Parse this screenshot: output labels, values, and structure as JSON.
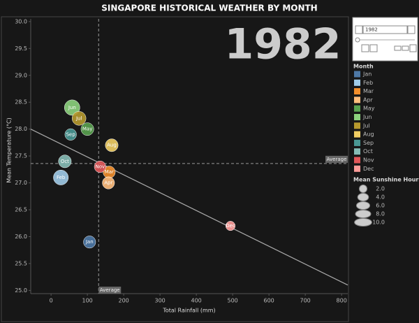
{
  "chart_data": {
    "type": "scatter",
    "title": "SINGAPORE HISTORICAL WEATHER BY MONTH",
    "year": "1982",
    "x_label": "Total Rainfall (mm)",
    "y_label": "Mean Temperature (°C)",
    "xlim": [
      -56,
      817
    ],
    "ylim": [
      24.94,
      30.05
    ],
    "xticks": [
      0,
      100,
      200,
      300,
      400,
      500,
      600,
      700,
      800
    ],
    "yticks": [
      {
        "value": 25,
        "label": "25.0"
      },
      {
        "value": 25.5,
        "label": "25.5"
      },
      {
        "value": 26,
        "label": "26.0"
      },
      {
        "value": 26.5,
        "label": "26.5"
      },
      {
        "value": 27,
        "label": "27.0"
      },
      {
        "value": 27.5,
        "label": "27.5"
      },
      {
        "value": 28,
        "label": "28.0"
      },
      {
        "value": 28.5,
        "label": "28.5"
      },
      {
        "value": 29,
        "label": "29.0"
      },
      {
        "value": 29.5,
        "label": "29.5"
      },
      {
        "value": 30,
        "label": "30.0"
      }
    ],
    "legend_title": "Month",
    "series": [
      {
        "name": "Jan",
        "color": "#4e79a7",
        "x": [
          106
        ],
        "values": [
          25.9
        ],
        "sizes": [
          5.0
        ]
      },
      {
        "name": "Feb",
        "color": "#a0cbe8",
        "x": [
          27
        ],
        "values": [
          27.1
        ],
        "sizes": [
          7.5
        ]
      },
      {
        "name": "Mar",
        "color": "#f28e2b",
        "x": [
          160
        ],
        "values": [
          27.2
        ],
        "sizes": [
          5.0
        ]
      },
      {
        "name": "Apr",
        "color": "#ffbe7d",
        "x": [
          158
        ],
        "values": [
          27.0
        ],
        "sizes": [
          5.0
        ]
      },
      {
        "name": "May",
        "color": "#59a14f",
        "x": [
          100
        ],
        "values": [
          28.0
        ],
        "sizes": [
          5.5
        ]
      },
      {
        "name": "Jun",
        "color": "#8cd17d",
        "x": [
          58
        ],
        "values": [
          28.4
        ],
        "sizes": [
          8.0
        ]
      },
      {
        "name": "Jul",
        "color": "#b6992d",
        "x": [
          77
        ],
        "values": [
          28.2
        ],
        "sizes": [
          6.5
        ]
      },
      {
        "name": "Aug",
        "color": "#f1ce63",
        "x": [
          167
        ],
        "values": [
          27.7
        ],
        "sizes": [
          5.5
        ]
      },
      {
        "name": "Sep",
        "color": "#499894",
        "x": [
          54
        ],
        "values": [
          27.9
        ],
        "sizes": [
          4.5
        ]
      },
      {
        "name": "Oct",
        "color": "#86bcb6",
        "x": [
          38
        ],
        "values": [
          27.4
        ],
        "sizes": [
          5.5
        ]
      },
      {
        "name": "Nov",
        "color": "#e15759",
        "x": [
          135
        ],
        "values": [
          27.3
        ],
        "sizes": [
          4.5
        ]
      },
      {
        "name": "Dec",
        "color": "#ff9d9a",
        "x": [
          494
        ],
        "values": [
          26.2
        ],
        "sizes": [
          3.0
        ]
      }
    ],
    "reference_lines": {
      "label": "Average",
      "x": 131,
      "y": 27.36
    },
    "trend_line": {
      "x": [
        -56,
        817
      ],
      "y": [
        28.0,
        25.1
      ]
    },
    "size_legend": {
      "title": "Mean Sunshine Hours",
      "values": [
        {
          "value": 2,
          "label": "2.0"
        },
        {
          "value": 4,
          "label": "4.0"
        },
        {
          "value": 6,
          "label": "6.0"
        },
        {
          "value": 8,
          "label": "8.0"
        },
        {
          "value": 10,
          "label": "10.0"
        }
      ]
    }
  }
}
